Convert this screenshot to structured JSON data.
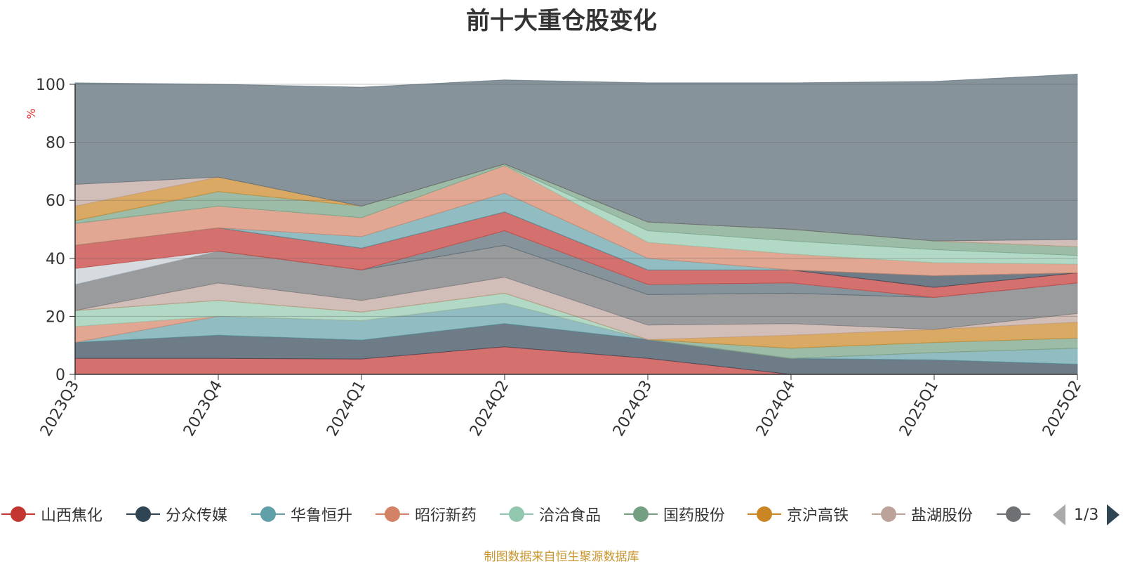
{
  "chart_data": {
    "type": "area",
    "title": "前十大重仓股变化",
    "ylabel": "%",
    "ylim": [
      0,
      100
    ],
    "yticks": [
      0,
      20,
      40,
      60,
      80,
      100
    ],
    "grid": true,
    "stacked": true,
    "categories": [
      "2023Q3",
      "2023Q4",
      "2024Q1",
      "2024Q2",
      "2024Q3",
      "2024Q4",
      "2025Q1",
      "2025Q2"
    ],
    "series": [
      {
        "name": "山西焦化",
        "color": "#c23531",
        "values": [
          5.5,
          5.5,
          5.3,
          9.5,
          5.5,
          0,
          0,
          0
        ]
      },
      {
        "name": "分众传媒",
        "color": "#2f4554",
        "values": [
          5.5,
          8,
          6.5,
          8,
          6.5,
          5.5,
          5,
          3.5
        ]
      },
      {
        "name": "华鲁恒升",
        "color": "#61a0a8",
        "values": [
          0,
          6.5,
          6.7,
          7,
          0,
          0,
          2.5,
          5.5
        ]
      },
      {
        "name": "昭衍新药",
        "color": "#d48265",
        "values": [
          5.5,
          0,
          0,
          0,
          0,
          0,
          0,
          0
        ]
      },
      {
        "name": "洽洽食品",
        "color": "#91c7ae",
        "values": [
          5.5,
          5.5,
          3,
          3.5,
          0,
          0,
          0,
          0
        ]
      },
      {
        "name": "国药股份",
        "color": "#749f83",
        "values": [
          0,
          0,
          0,
          0,
          0,
          3.5,
          3.5,
          3.5
        ]
      },
      {
        "name": "京沪高铁",
        "color": "#ca8622",
        "values": [
          0,
          0,
          0,
          0,
          0,
          4.5,
          4.5,
          5.5
        ]
      },
      {
        "name": "盐湖股份",
        "color": "#bda29a",
        "values": [
          0,
          6,
          4,
          5.5,
          5,
          4,
          0,
          3
        ]
      },
      {
        "name": "",
        "color": "#6e7074",
        "values": [
          9,
          11,
          10.5,
          11,
          10.5,
          10.5,
          11,
          10.5
        ]
      },
      {
        "name": "",
        "color": "#546570",
        "values": [
          0,
          0,
          0,
          5,
          3.5,
          3.5,
          0,
          0
        ]
      },
      {
        "name": "",
        "color": "#c4ccd3",
        "values": [
          5.5,
          0,
          0,
          0,
          0,
          0,
          0,
          0
        ]
      },
      {
        "name": "",
        "color": "#c23531",
        "values": [
          8,
          8,
          7.5,
          6.5,
          5,
          4.5,
          3.5,
          3.5
        ]
      },
      {
        "name": "",
        "color": "#2f4554",
        "values": [
          0,
          0,
          0,
          0,
          0,
          0,
          4,
          0
        ]
      },
      {
        "name": "",
        "color": "#61a0a8",
        "values": [
          0,
          0,
          4,
          6.5,
          4,
          0,
          0,
          0
        ]
      },
      {
        "name": "",
        "color": "#d48265",
        "values": [
          7.5,
          7.5,
          6.5,
          9.5,
          5.5,
          5.5,
          4.5,
          3
        ]
      },
      {
        "name": "",
        "color": "#91c7ae",
        "values": [
          0,
          0,
          0,
          0,
          4,
          4.5,
          4.5,
          3
        ]
      },
      {
        "name": "",
        "color": "#749f83",
        "values": [
          1,
          5,
          4,
          0.5,
          3,
          4,
          3,
          3
        ]
      },
      {
        "name": "",
        "color": "#ca8622",
        "values": [
          5,
          5,
          0,
          0,
          0,
          0,
          0,
          0
        ]
      },
      {
        "name": "",
        "color": "#bda29a",
        "values": [
          7.5,
          0,
          0,
          0,
          0,
          0,
          0,
          2.5
        ]
      },
      {
        "name": "",
        "color": "#546570",
        "values": [
          35,
          32,
          41,
          29,
          48,
          50.5,
          55,
          57
        ]
      }
    ]
  },
  "legend": {
    "items": [
      {
        "label": "山西焦化",
        "icon": "circle",
        "color": "#c23531"
      },
      {
        "label": "分众传媒",
        "icon": "circle",
        "color": "#2f4554"
      },
      {
        "label": "华鲁恒升",
        "icon": "circle",
        "color": "#61a0a8"
      },
      {
        "label": "昭衍新药",
        "icon": "circle",
        "color": "#d48265"
      },
      {
        "label": "洽洽食品",
        "icon": "circle",
        "color": "#91c7ae"
      },
      {
        "label": "国药股份",
        "icon": "circle",
        "color": "#749f83"
      },
      {
        "label": "京沪高铁",
        "icon": "circle",
        "color": "#ca8622"
      },
      {
        "label": "盐湖股份",
        "icon": "circle",
        "color": "#bda29a"
      },
      {
        "label": "",
        "icon": "circle",
        "color": "#6e7074"
      }
    ],
    "page_text": "1/3"
  },
  "source_note": "制图数据来自恒生聚源数据库"
}
